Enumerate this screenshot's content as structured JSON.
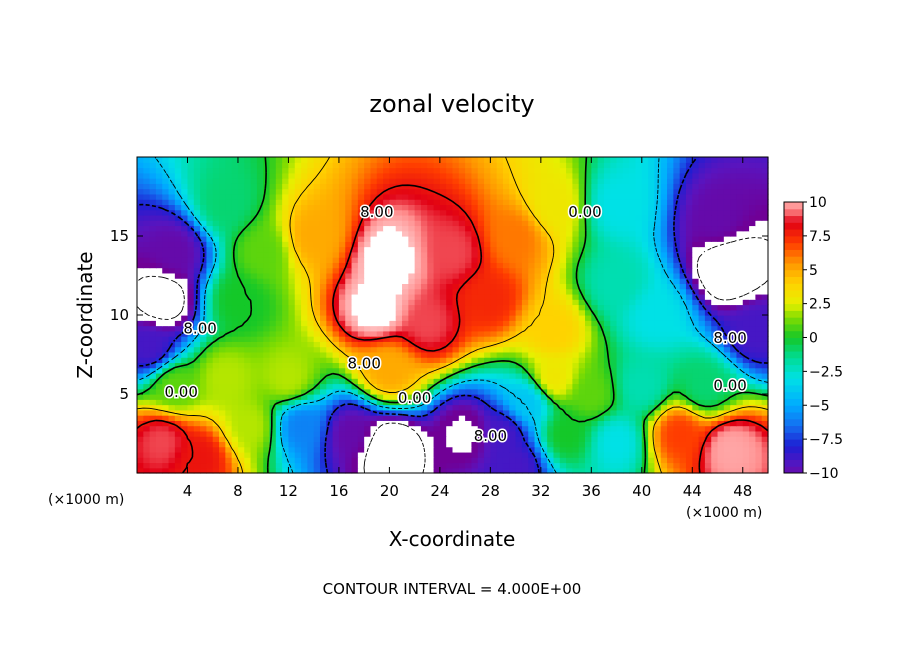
{
  "chart_data": {
    "type": "heatmap",
    "title": "zonal velocity",
    "xlabel": "X-coordinate",
    "ylabel": "Z-coordinate",
    "x_unit": "(×1000 m)",
    "x_unit_right": "(×1000 m)",
    "x_ticks": [
      "4",
      "8",
      "12",
      "16",
      "20",
      "24",
      "28",
      "32",
      "36",
      "40",
      "44",
      "48"
    ],
    "y_ticks": [
      "5",
      "10",
      "15"
    ],
    "xlim": [
      0,
      50
    ],
    "ylim": [
      0,
      20
    ],
    "footer": "CONTOUR INTERVAL = 4.000E+00",
    "colorbar": {
      "ticks": [
        "10",
        "7.5",
        "5",
        "2.5",
        "0",
        "−2.5",
        "−5",
        "−7.5",
        "−10"
      ],
      "range": [
        -10,
        10
      ]
    },
    "contour_labels": [
      {
        "text": "8.00",
        "x": 19,
        "y": 16.5
      },
      {
        "text": "0.00",
        "x": 35.5,
        "y": 16.5
      },
      {
        "text": "8.00",
        "x": 5,
        "y": 9.1
      },
      {
        "text": "8.00",
        "x": 18,
        "y": 6.9
      },
      {
        "text": "8.00",
        "x": 47,
        "y": 8.5
      },
      {
        "text": "0.00",
        "x": 3.5,
        "y": 5.1
      },
      {
        "text": "0.00",
        "x": 22,
        "y": 4.7
      },
      {
        "text": "8.00",
        "x": 28,
        "y": 2.3
      },
      {
        "text": "0.00",
        "x": 47,
        "y": 5.5
      }
    ],
    "field_features": [
      {
        "x": 19,
        "y": 10.5,
        "value": 11
      },
      {
        "x": 20,
        "y": 13.5,
        "value": 11
      },
      {
        "x": 23,
        "y": 9.5,
        "value": 9
      },
      {
        "x": 25,
        "y": 14,
        "value": 9
      },
      {
        "x": 28,
        "y": 11,
        "value": 7.5
      },
      {
        "x": 30,
        "y": 15,
        "value": 6
      },
      {
        "x": 14,
        "y": 15,
        "value": 5
      },
      {
        "x": 33,
        "y": 9,
        "value": 4
      },
      {
        "x": 33,
        "y": 17,
        "value": 3
      },
      {
        "x": 10,
        "y": 14,
        "value": 1
      },
      {
        "x": 8,
        "y": 11,
        "value": 0
      },
      {
        "x": 7,
        "y": 17,
        "value": -1
      },
      {
        "x": 38,
        "y": 12,
        "value": -2
      },
      {
        "x": 38,
        "y": 17,
        "value": -3
      },
      {
        "x": 41,
        "y": 10,
        "value": -3
      },
      {
        "x": 2,
        "y": 11,
        "value": -13
      },
      {
        "x": 3,
        "y": 14,
        "value": -10
      },
      {
        "x": 1,
        "y": 8,
        "value": -9
      },
      {
        "x": 47,
        "y": 13,
        "value": -14
      },
      {
        "x": 46,
        "y": 16,
        "value": -10
      },
      {
        "x": 49,
        "y": 9,
        "value": -9
      },
      {
        "x": 20,
        "y": 1.5,
        "value": -14
      },
      {
        "x": 17,
        "y": 2.5,
        "value": -10
      },
      {
        "x": 26,
        "y": 2.5,
        "value": -11
      },
      {
        "x": 29,
        "y": 2.5,
        "value": -9
      },
      {
        "x": 30,
        "y": 0.5,
        "value": -9
      },
      {
        "x": 13,
        "y": 3,
        "value": -6
      },
      {
        "x": 2,
        "y": 2,
        "value": 9
      },
      {
        "x": 5,
        "y": 1,
        "value": 8
      },
      {
        "x": 47,
        "y": 1.5,
        "value": 10
      },
      {
        "x": 43,
        "y": 2.5,
        "value": 7
      },
      {
        "x": 3,
        "y": 5.5,
        "value": 1
      },
      {
        "x": 7,
        "y": 6,
        "value": 2
      },
      {
        "x": 12,
        "y": 6,
        "value": 2
      },
      {
        "x": 20,
        "y": 6.5,
        "value": 5
      },
      {
        "x": 33,
        "y": 6,
        "value": 3
      },
      {
        "x": 36,
        "y": 5,
        "value": 1
      },
      {
        "x": 38,
        "y": 2,
        "value": -3
      },
      {
        "x": 40,
        "y": 5.5,
        "value": -2
      },
      {
        "x": 45,
        "y": 5.5,
        "value": -1
      },
      {
        "x": 9,
        "y": 3,
        "value": 2
      },
      {
        "x": 34,
        "y": 2.5,
        "value": 0
      },
      {
        "x": 31,
        "y": 4.5,
        "value": -4
      }
    ]
  }
}
